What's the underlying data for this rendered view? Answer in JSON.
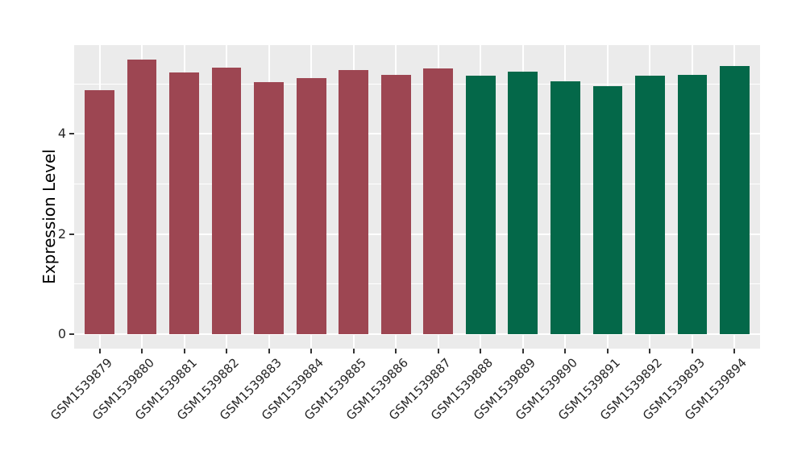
{
  "figure": {
    "background": "#ffffff",
    "panel_background": "#ebebeb",
    "grid_color": "#ffffff",
    "axis_text_color": "#262626",
    "axis_title_color": "#000000",
    "tick_mark_color": "#333333",
    "group_colors": {
      "left_group": "#9d4652",
      "right_group": "#046849"
    }
  },
  "chart_data": {
    "type": "bar",
    "title": "",
    "xlabel": "",
    "ylabel": "Expression Level",
    "categories": [
      "GSM1539879",
      "GSM1539880",
      "GSM1539881",
      "GSM1539882",
      "GSM1539883",
      "GSM1539884",
      "GSM1539885",
      "GSM1539886",
      "GSM1539887",
      "GSM1539888",
      "GSM1539889",
      "GSM1539890",
      "GSM1539891",
      "GSM1539892",
      "GSM1539893",
      "GSM1539894"
    ],
    "values": [
      4.88,
      5.49,
      5.23,
      5.33,
      5.03,
      5.11,
      5.27,
      5.18,
      5.31,
      5.16,
      5.24,
      5.06,
      4.95,
      5.16,
      5.18,
      5.35
    ],
    "colors": [
      "#9d4652",
      "#9d4652",
      "#9d4652",
      "#9d4652",
      "#9d4652",
      "#9d4652",
      "#9d4652",
      "#9d4652",
      "#9d4652",
      "#046849",
      "#046849",
      "#046849",
      "#046849",
      "#046849",
      "#046849",
      "#046849"
    ],
    "yticks": [
      0,
      2,
      4
    ],
    "minor_yticks": [
      1,
      3,
      5
    ],
    "ylim": [
      -0.29,
      5.78
    ],
    "x_label_rotation": 45,
    "grid": "on",
    "legend_position": "none"
  }
}
